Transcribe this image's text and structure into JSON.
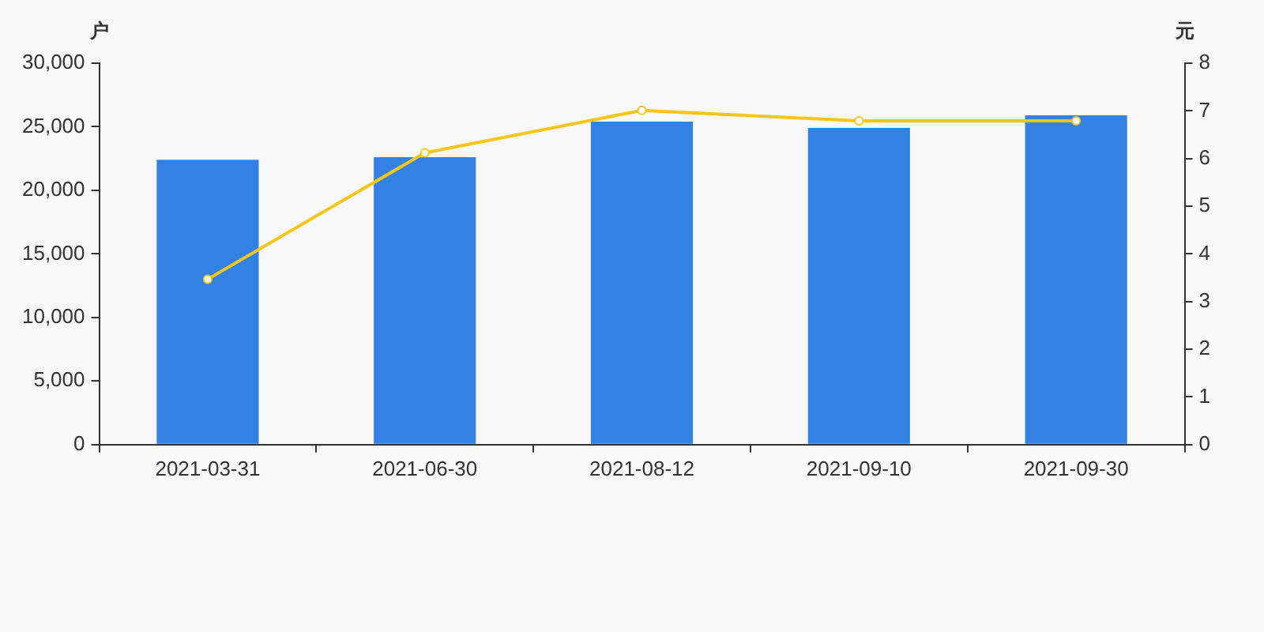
{
  "chart_data": {
    "type": "bar",
    "ylabel": "户",
    "y2label": "元",
    "categories": [
      "2021-03-31",
      "2021-06-30",
      "2021-08-12",
      "2021-09-10",
      "2021-09-30"
    ],
    "series": [
      {
        "color": "#3381e3",
        "values": [
          22400,
          22600,
          25400,
          24900,
          25900
        ]
      },
      {
        "type": "line",
        "axis": "y2",
        "color": "#f5c518",
        "values": [
          3.47,
          6.12,
          7.01,
          6.79,
          6.79
        ]
      }
    ],
    "ylim": [
      0,
      30000
    ],
    "yticks": [
      0,
      {
        "value": 5000,
        "label": "5,000"
      },
      {
        "value": 10000,
        "label": "10,000"
      },
      {
        "value": 15000,
        "label": "15,000"
      },
      {
        "value": 20000,
        "label": "20,000"
      },
      {
        "value": 25000,
        "label": "25,000"
      },
      {
        "value": 30000,
        "label": "30,000"
      }
    ],
    "y2lim": [
      0,
      8
    ],
    "y2ticks": [
      0,
      1,
      2,
      3,
      4,
      5,
      6,
      7,
      8
    ],
    "grid": false,
    "legend": false,
    "marker": "circle"
  }
}
